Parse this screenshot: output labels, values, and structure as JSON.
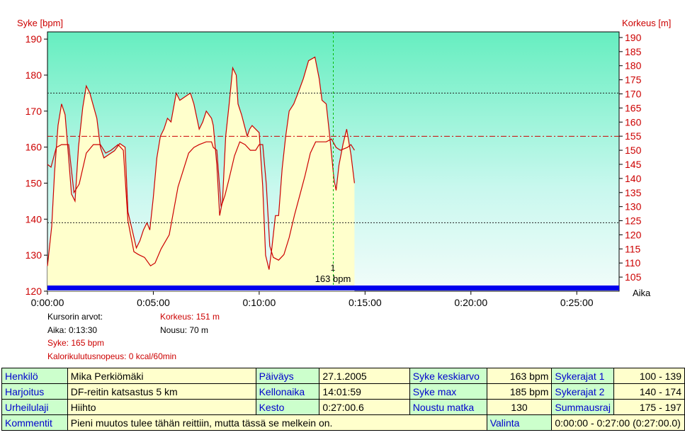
{
  "chart_data": {
    "type": "line",
    "y_left_label": "Syke [bpm]",
    "y_right_label": "Korkeus [m]",
    "x_label": "Aika",
    "y_left_range": [
      120,
      192
    ],
    "y_right_range": [
      100,
      192
    ],
    "x_range_seconds": [
      0,
      1620
    ],
    "y_left_ticks": [
      "120",
      "130",
      "140",
      "150",
      "160",
      "170",
      "180",
      "190"
    ],
    "y_right_ticks": [
      "105",
      "110",
      "115",
      "120",
      "125",
      "130",
      "135",
      "140",
      "145",
      "150",
      "155",
      "160",
      "165",
      "170",
      "175",
      "180",
      "185",
      "190"
    ],
    "x_ticks": [
      "0:00:00",
      "0:05:00",
      "0:10:00",
      "0:15:00",
      "0:20:00",
      "0:25:00"
    ],
    "limits_bpm": [
      139,
      175
    ],
    "average_bpm": 163,
    "cursor": {
      "time": "0:13:30",
      "label_number": "1",
      "label_value": "163 bpm"
    },
    "series": [
      {
        "name": "Syke",
        "color": "#cc0000",
        "points": [
          [
            0,
            127
          ],
          [
            12,
            138
          ],
          [
            20,
            153
          ],
          [
            30,
            166
          ],
          [
            40,
            172
          ],
          [
            50,
            169
          ],
          [
            60,
            157
          ],
          [
            68,
            147
          ],
          [
            78,
            145
          ],
          [
            88,
            160
          ],
          [
            100,
            171
          ],
          [
            110,
            177
          ],
          [
            120,
            175
          ],
          [
            140,
            168
          ],
          [
            150,
            160
          ],
          [
            160,
            157
          ],
          [
            175,
            158
          ],
          [
            190,
            159
          ],
          [
            205,
            161
          ],
          [
            220,
            160
          ],
          [
            228,
            142
          ],
          [
            240,
            137
          ],
          [
            252,
            132
          ],
          [
            262,
            134
          ],
          [
            272,
            137
          ],
          [
            282,
            139
          ],
          [
            290,
            137
          ],
          [
            300,
            146
          ],
          [
            310,
            157
          ],
          [
            320,
            163
          ],
          [
            330,
            165
          ],
          [
            340,
            168
          ],
          [
            350,
            167
          ],
          [
            365,
            175
          ],
          [
            375,
            173
          ],
          [
            390,
            174
          ],
          [
            405,
            175
          ],
          [
            415,
            172
          ],
          [
            430,
            165
          ],
          [
            440,
            167
          ],
          [
            450,
            170
          ],
          [
            465,
            168
          ],
          [
            470,
            166
          ],
          [
            480,
            155
          ],
          [
            488,
            141
          ],
          [
            496,
            145
          ],
          [
            505,
            163
          ],
          [
            515,
            172
          ],
          [
            525,
            182
          ],
          [
            535,
            180
          ],
          [
            540,
            172
          ],
          [
            550,
            169
          ],
          [
            558,
            166
          ],
          [
            566,
            163
          ],
          [
            573,
            165
          ],
          [
            580,
            166
          ],
          [
            590,
            165
          ],
          [
            600,
            164
          ],
          [
            610,
            149
          ],
          [
            618,
            130
          ],
          [
            628,
            126
          ],
          [
            636,
            132
          ],
          [
            646,
            141
          ],
          [
            655,
            141
          ],
          [
            665,
            154
          ],
          [
            675,
            163
          ],
          [
            685,
            170
          ],
          [
            698,
            172
          ],
          [
            710,
            175
          ],
          [
            725,
            179
          ],
          [
            740,
            184
          ],
          [
            758,
            185
          ],
          [
            770,
            179
          ],
          [
            778,
            173
          ],
          [
            790,
            172
          ],
          [
            800,
            163
          ],
          [
            812,
            151
          ],
          [
            818,
            148
          ],
          [
            826,
            155
          ],
          [
            838,
            161
          ],
          [
            848,
            165
          ],
          [
            860,
            158
          ],
          [
            870,
            150
          ]
        ]
      },
      {
        "name": "Korkeus",
        "color": "#cc0000",
        "points": [
          [
            0,
            145
          ],
          [
            10,
            144
          ],
          [
            25,
            151
          ],
          [
            40,
            152
          ],
          [
            60,
            152
          ],
          [
            75,
            135
          ],
          [
            90,
            138
          ],
          [
            110,
            149
          ],
          [
            130,
            152
          ],
          [
            150,
            152
          ],
          [
            165,
            149
          ],
          [
            180,
            150
          ],
          [
            200,
            152
          ],
          [
            215,
            150
          ],
          [
            228,
            125
          ],
          [
            245,
            114
          ],
          [
            258,
            113
          ],
          [
            275,
            112
          ],
          [
            292,
            109
          ],
          [
            305,
            110
          ],
          [
            322,
            115
          ],
          [
            345,
            120
          ],
          [
            370,
            137
          ],
          [
            385,
            143
          ],
          [
            400,
            149
          ],
          [
            415,
            151
          ],
          [
            430,
            152
          ],
          [
            450,
            153
          ],
          [
            465,
            153
          ],
          [
            470,
            151
          ],
          [
            480,
            150
          ],
          [
            492,
            130
          ],
          [
            503,
            134
          ],
          [
            515,
            140
          ],
          [
            530,
            148
          ],
          [
            545,
            153
          ],
          [
            560,
            152
          ],
          [
            575,
            150
          ],
          [
            590,
            150
          ],
          [
            600,
            152
          ],
          [
            610,
            152
          ],
          [
            620,
            138
          ],
          [
            630,
            116
          ],
          [
            640,
            112
          ],
          [
            655,
            111
          ],
          [
            670,
            113
          ],
          [
            685,
            119
          ],
          [
            700,
            127
          ],
          [
            715,
            134
          ],
          [
            730,
            141
          ],
          [
            745,
            149
          ],
          [
            760,
            153
          ],
          [
            775,
            153
          ],
          [
            790,
            153
          ],
          [
            805,
            154
          ],
          [
            818,
            151
          ],
          [
            830,
            150
          ],
          [
            850,
            151
          ],
          [
            860,
            152
          ],
          [
            870,
            150
          ]
        ]
      }
    ]
  },
  "cursor_info": {
    "title": "Kursorin arvot:",
    "aika": "Aika: 0:13:30",
    "syke": "Syke: 165 bpm",
    "kalori": "Kalorikulutusnopeus: 0 kcal/60min",
    "korkeus": "Korkeus: 151 m",
    "nousu": "Nousu: 70 m"
  },
  "summary": {
    "henkilo_label": "Henkilö",
    "henkilo": "Mika Perkiömäki",
    "paivays_label": "Päiväys",
    "paivays": "27.1.2005",
    "syke_keskiarvo_label": "Syke keskiarvo",
    "syke_keskiarvo": "163 bpm",
    "sykerajat1_label": "Sykerajat 1",
    "sykerajat1": "100 - 139",
    "harjoitus_label": "Harjoitus",
    "harjoitus": "DF-reitin katsastus 5 km",
    "kellonaika_label": "Kellonaika",
    "kellonaika": "14:01:59",
    "syke_max_label": "Syke max",
    "syke_max": "185 bpm",
    "sykerajat2_label": "Sykerajat 2",
    "sykerajat2": "140 - 174",
    "urheilulaji_label": "Urheilulaji",
    "urheilulaji": "Hiihto",
    "kesto_label": "Kesto",
    "kesto": "0:27:00.6",
    "noustu_matka_label": "Noustu matka",
    "noustu_matka": "130",
    "summausraja_label": "Summausraj",
    "summausraja": "175 - 197",
    "kommentit_label": "Kommentit",
    "kommentit": "Pieni muutos tulee tähän reittiin, mutta tässä se melkein on.",
    "valinta_label": "Valinta",
    "valinta": "0:00:00 - 0:27:00 (0:27:00.0)"
  }
}
